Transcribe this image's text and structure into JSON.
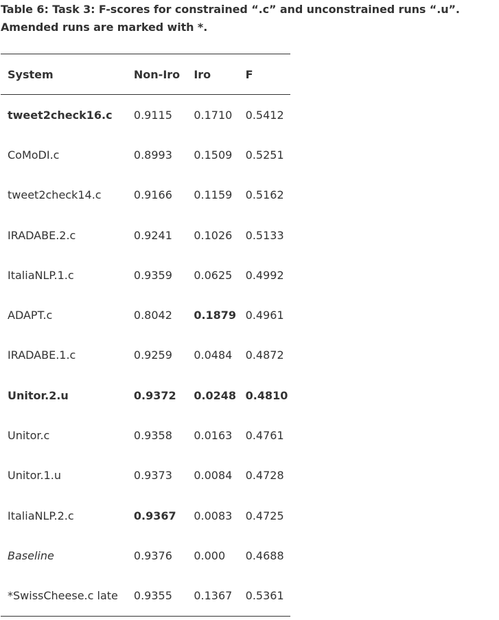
{
  "caption": "Table 6: Task 3: F-scores for constrained “.c” and unconstrained runs “.u”. Amended runs are marked with *.",
  "table": {
    "headers": [
      "System",
      "Non-Iro",
      "Iro",
      "F"
    ],
    "rows": [
      {
        "system": "tweet2check16.c",
        "non_iro": "0.9115",
        "iro": "0.1710",
        "f": "0.5412"
      },
      {
        "system": "CoMoDI.c",
        "non_iro": "0.8993",
        "iro": "0.1509",
        "f": "0.5251"
      },
      {
        "system": "tweet2check14.c",
        "non_iro": "0.9166",
        "iro": "0.1159",
        "f": "0.5162"
      },
      {
        "system": "IRADABE.2.c",
        "non_iro": "0.9241",
        "iro": "0.1026",
        "f": "0.5133"
      },
      {
        "system": "ItaliaNLP.1.c",
        "non_iro": "0.9359",
        "iro": "0.0625",
        "f": "0.4992"
      },
      {
        "system": "ADAPT.c",
        "non_iro": "0.8042",
        "iro": "0.1879",
        "f": "0.4961"
      },
      {
        "system": "IRADABE.1.c",
        "non_iro": "0.9259",
        "iro": "0.0484",
        "f": "0.4872"
      },
      {
        "system": "Unitor.2.u",
        "non_iro": "0.9372",
        "iro": "0.0248",
        "f": "0.4810"
      },
      {
        "system": "Unitor.c",
        "non_iro": "0.9358",
        "iro": "0.0163",
        "f": "0.4761"
      },
      {
        "system": "Unitor.1.u",
        "non_iro": "0.9373",
        "iro": "0.0084",
        "f": "0.4728"
      },
      {
        "system": "ItaliaNLP.2.c",
        "non_iro": "0.9367",
        "iro": "0.0083",
        "f": "0.4725"
      },
      {
        "system": "Baseline",
        "non_iro": "0.9376",
        "iro": "0.000",
        "f": "0.4688"
      },
      {
        "system": "*SwissCheese.c late",
        "non_iro": "0.9355",
        "iro": "0.1367",
        "f": "0.5361"
      }
    ]
  }
}
